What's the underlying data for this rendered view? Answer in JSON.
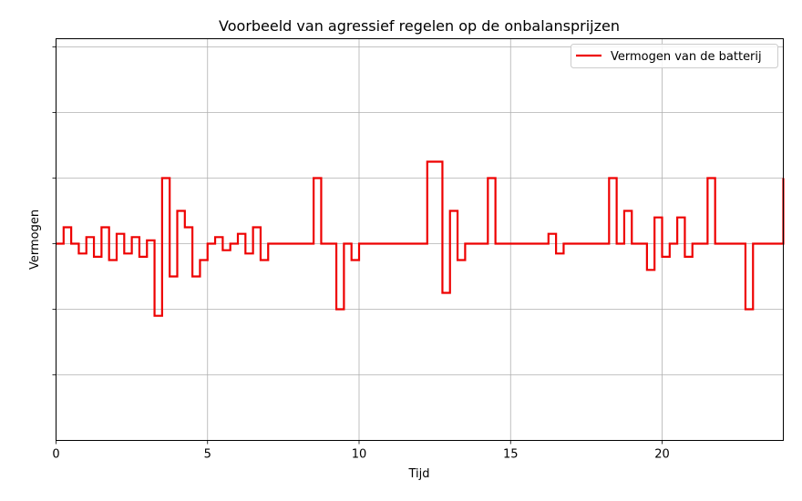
{
  "chart_data": {
    "type": "line",
    "step": "post",
    "title": "Voorbeeld van agressief regelen op de onbalansprijzen",
    "xlabel": "Tijd",
    "ylabel": "Vermogen",
    "xlim": [
      0,
      24
    ],
    "ylim": [
      -6,
      6.25
    ],
    "xticks": [
      0,
      5,
      10,
      15,
      20
    ],
    "yticks": [
      -4,
      -2,
      0,
      2,
      4,
      6
    ],
    "ytick_labels_shown": false,
    "grid": true,
    "legend_position": "upper right",
    "series": [
      {
        "name": "Vermogen van de batterij",
        "color": "#ee0000",
        "x": [
          0,
          0.25,
          0.5,
          0.75,
          1.0,
          1.25,
          1.5,
          1.75,
          2.0,
          2.25,
          2.5,
          2.75,
          3.0,
          3.25,
          3.5,
          3.75,
          4.0,
          4.25,
          4.5,
          4.75,
          5.0,
          5.25,
          5.5,
          5.75,
          6.0,
          6.25,
          6.5,
          6.75,
          7.0,
          7.25,
          7.5,
          7.75,
          8.0,
          8.25,
          8.5,
          8.75,
          9.0,
          9.25,
          9.5,
          9.75,
          10.0,
          10.25,
          10.5,
          10.75,
          11.0,
          11.25,
          11.5,
          11.75,
          12.0,
          12.25,
          12.5,
          12.75,
          13.0,
          13.25,
          13.5,
          13.75,
          14.0,
          14.25,
          14.5,
          14.75,
          15.0,
          15.25,
          15.5,
          15.75,
          16.0,
          16.25,
          16.5,
          16.75,
          17.0,
          17.25,
          17.5,
          17.75,
          18.0,
          18.25,
          18.5,
          18.75,
          19.0,
          19.25,
          19.5,
          19.75,
          20.0,
          20.25,
          20.5,
          20.75,
          21.0,
          21.25,
          21.5,
          21.75,
          22.0,
          22.25,
          22.5,
          22.75,
          23.0,
          23.25,
          23.5,
          23.75,
          24.0
        ],
        "y": [
          0,
          0.5,
          0,
          -0.3,
          0.2,
          -0.4,
          0.5,
          -0.5,
          0.3,
          -0.3,
          0.2,
          -0.4,
          0.1,
          -2.2,
          2.0,
          -1.0,
          1.0,
          0.5,
          -1.0,
          -0.5,
          0,
          0.2,
          -0.2,
          0,
          0.3,
          -0.3,
          0.5,
          -0.5,
          0,
          0,
          0,
          0,
          0,
          0,
          2.0,
          0,
          0,
          -2.0,
          0,
          -0.5,
          0,
          0,
          0,
          0,
          0,
          0,
          0,
          0,
          0,
          2.5,
          2.5,
          -1.5,
          1.0,
          -0.5,
          0,
          0,
          0,
          2.0,
          0,
          0,
          0,
          0,
          0,
          0,
          0,
          0.3,
          -0.3,
          0,
          0,
          0,
          0,
          0,
          0,
          2.0,
          0,
          1.0,
          0,
          0,
          -0.8,
          0.8,
          -0.4,
          0,
          0.8,
          -0.4,
          0,
          0,
          2.0,
          0,
          0,
          0,
          0,
          -2.0,
          0,
          0,
          0,
          0,
          2.0
        ]
      }
    ]
  }
}
